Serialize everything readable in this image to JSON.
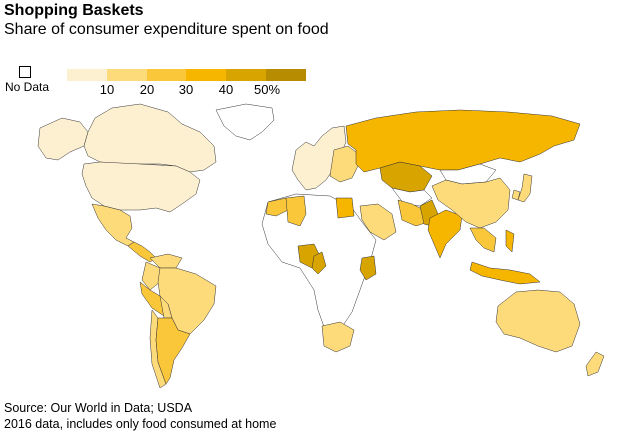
{
  "title": "Shopping Baskets",
  "subtitle": "Share of consumer expenditure spent on food",
  "legend": {
    "no_data_label": "No Data",
    "colors": [
      "#fdf0d0",
      "#fedb7a",
      "#fbc73a",
      "#f6b600",
      "#d8a400",
      "#b78c00"
    ],
    "ticks": [
      "10",
      "20",
      "30",
      "40",
      "50%"
    ]
  },
  "map": {
    "regions": [
      {
        "name": "canada",
        "bin": 0
      },
      {
        "name": "united-states",
        "bin": 0
      },
      {
        "name": "alaska",
        "bin": 0
      },
      {
        "name": "greenland",
        "bin": -1
      },
      {
        "name": "mexico",
        "bin": 1
      },
      {
        "name": "central-america",
        "bin": 2
      },
      {
        "name": "colombia",
        "bin": 1
      },
      {
        "name": "venezuela",
        "bin": 1
      },
      {
        "name": "brazil",
        "bin": 1
      },
      {
        "name": "peru",
        "bin": 2
      },
      {
        "name": "bolivia",
        "bin": 1
      },
      {
        "name": "argentina",
        "bin": 2
      },
      {
        "name": "chile",
        "bin": 1
      },
      {
        "name": "western-europe",
        "bin": 0
      },
      {
        "name": "eastern-europe",
        "bin": 1
      },
      {
        "name": "russia",
        "bin": 3
      },
      {
        "name": "kazakhstan",
        "bin": 4
      },
      {
        "name": "morocco",
        "bin": 2
      },
      {
        "name": "algeria",
        "bin": 2
      },
      {
        "name": "egypt",
        "bin": 3
      },
      {
        "name": "nigeria",
        "bin": 4
      },
      {
        "name": "cameroon",
        "bin": 4
      },
      {
        "name": "kenya",
        "bin": 4
      },
      {
        "name": "south-africa",
        "bin": 1
      },
      {
        "name": "saudi-arabia",
        "bin": 1
      },
      {
        "name": "iran",
        "bin": 2
      },
      {
        "name": "pakistan",
        "bin": 4
      },
      {
        "name": "india",
        "bin": 3
      },
      {
        "name": "china",
        "bin": 1
      },
      {
        "name": "japan",
        "bin": 1
      },
      {
        "name": "south-korea",
        "bin": 1
      },
      {
        "name": "southeast-asia",
        "bin": 2
      },
      {
        "name": "indonesia",
        "bin": 3
      },
      {
        "name": "philippines",
        "bin": 3
      },
      {
        "name": "australia",
        "bin": 1
      },
      {
        "name": "new-zealand",
        "bin": 1
      },
      {
        "name": "africa-other",
        "bin": -1
      },
      {
        "name": "central-asia-other",
        "bin": -1
      },
      {
        "name": "mongolia",
        "bin": -1
      }
    ]
  },
  "source": "Source: Our World in Data; USDA",
  "note": "2016 data, includes only food consumed at home"
}
